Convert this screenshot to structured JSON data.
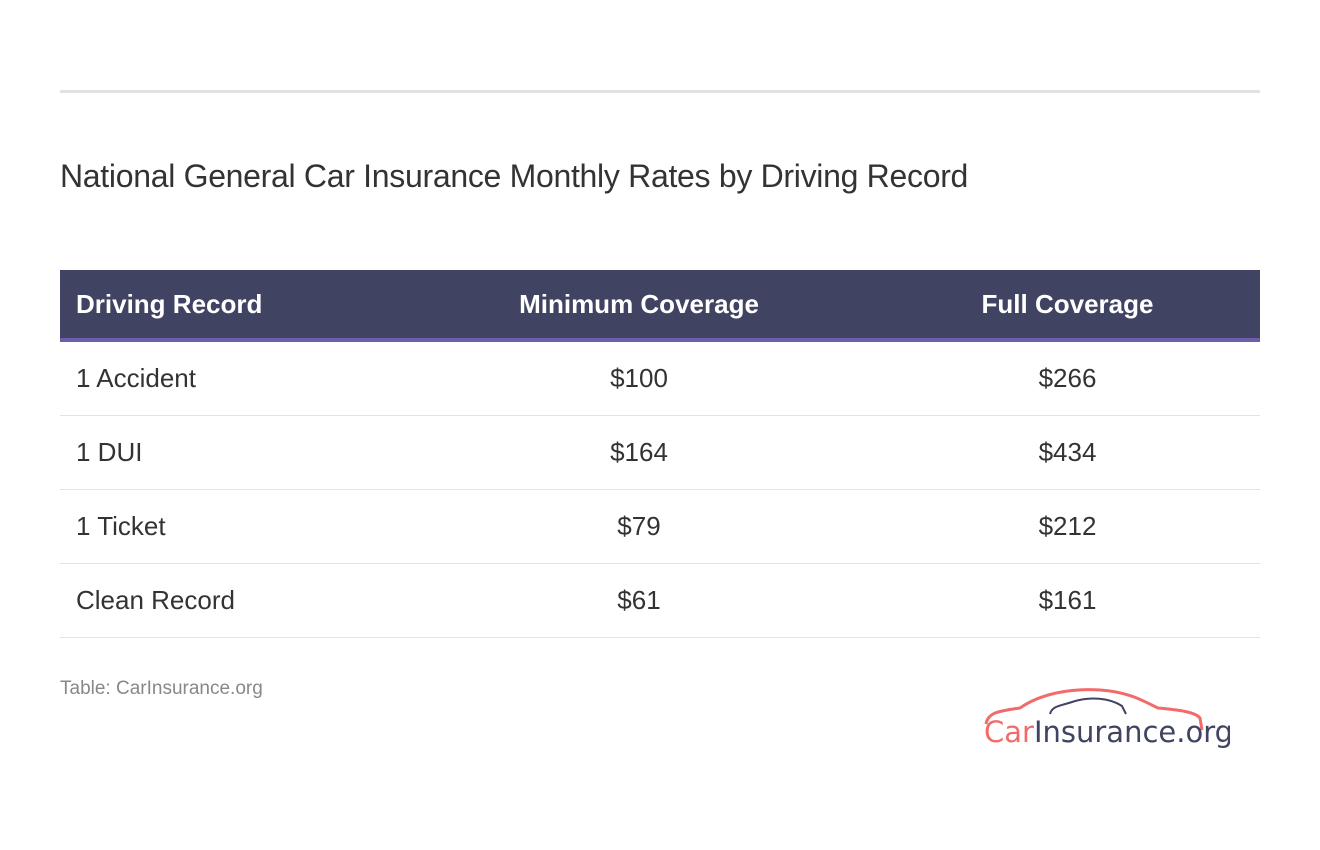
{
  "title": "National General Car Insurance Monthly Rates by Driving Record",
  "table": {
    "headers": [
      "Driving Record",
      "Minimum Coverage",
      "Full Coverage"
    ],
    "rows": [
      [
        "1 Accident",
        "$100",
        "$266"
      ],
      [
        "1 DUI",
        "$164",
        "$434"
      ],
      [
        "1 Ticket",
        "$79",
        "$212"
      ],
      [
        "Clean Record",
        "$61",
        "$161"
      ]
    ]
  },
  "source": "Table: CarInsurance.org",
  "logo": {
    "part1": "Car",
    "part2": "Insurance.org",
    "colors": {
      "accent": "#f26b6b",
      "dark": "#404462"
    }
  },
  "colors": {
    "header_bg": "#404462",
    "header_border": "#6a5fa8"
  }
}
